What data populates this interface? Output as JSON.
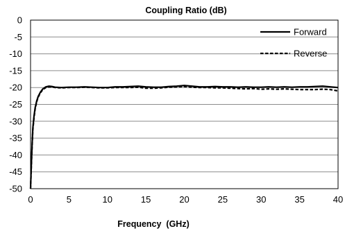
{
  "chart_data": {
    "type": "line",
    "title": "Coupling Ratio (dB)",
    "xlabel": "Frequency  (GHz)",
    "ylabel": "",
    "xlim": [
      0,
      40
    ],
    "ylim": [
      -50,
      0
    ],
    "xticks": [
      0,
      5,
      10,
      15,
      20,
      25,
      30,
      35,
      40
    ],
    "yticks": [
      0,
      -5,
      -10,
      -15,
      -20,
      -25,
      -30,
      -35,
      -40,
      -45,
      -50
    ],
    "grid": true,
    "legend_position": "top-right",
    "series": [
      {
        "name": "Forward",
        "style": "solid",
        "color": "#000000",
        "x": [
          0,
          0.1,
          0.2,
          0.3,
          0.45,
          0.6,
          0.8,
          1.0,
          1.3,
          1.6,
          2.0,
          2.4,
          2.8,
          3.2,
          4,
          5,
          6,
          7,
          8,
          9,
          10,
          11,
          12,
          13,
          14,
          15,
          16,
          17,
          18,
          19,
          20,
          21,
          22,
          23,
          24,
          25,
          26,
          27,
          28,
          29,
          30,
          31,
          32,
          33,
          34,
          35,
          36,
          37,
          38,
          39,
          40
        ],
        "y": [
          -50,
          -43,
          -37,
          -32,
          -28.5,
          -26,
          -24,
          -22.6,
          -21.3,
          -20.4,
          -19.8,
          -19.6,
          -19.7,
          -19.9,
          -20.0,
          -19.9,
          -19.9,
          -19.8,
          -19.9,
          -20.0,
          -20.0,
          -19.8,
          -19.8,
          -19.7,
          -19.6,
          -19.8,
          -19.9,
          -19.9,
          -19.7,
          -19.6,
          -19.4,
          -19.6,
          -19.8,
          -19.8,
          -19.7,
          -19.8,
          -19.8,
          -19.9,
          -19.8,
          -19.9,
          -19.9,
          -19.8,
          -19.9,
          -19.8,
          -19.9,
          -19.8,
          -19.8,
          -19.7,
          -19.6,
          -19.8,
          -20.0
        ]
      },
      {
        "name": "Reverse",
        "style": "dashed",
        "color": "#000000",
        "x": [
          0,
          0.1,
          0.2,
          0.3,
          0.45,
          0.6,
          0.8,
          1.0,
          1.3,
          1.6,
          2.0,
          2.4,
          2.8,
          3.2,
          4,
          5,
          6,
          7,
          8,
          9,
          10,
          11,
          12,
          13,
          14,
          15,
          16,
          17,
          18,
          19,
          20,
          21,
          22,
          23,
          24,
          25,
          26,
          27,
          28,
          29,
          30,
          31,
          32,
          33,
          34,
          35,
          36,
          37,
          38,
          39,
          40
        ],
        "y": [
          -50,
          -43.5,
          -37.5,
          -32.5,
          -29,
          -26.3,
          -24.2,
          -22.8,
          -21.5,
          -20.6,
          -20.0,
          -19.8,
          -19.8,
          -20.0,
          -20.1,
          -20.0,
          -20.0,
          -19.9,
          -20.0,
          -20.1,
          -20.1,
          -20.0,
          -20.0,
          -20.0,
          -19.9,
          -20.2,
          -20.2,
          -20.1,
          -19.9,
          -19.8,
          -19.7,
          -19.9,
          -20.0,
          -20.0,
          -20.1,
          -20.1,
          -20.2,
          -20.3,
          -20.4,
          -20.3,
          -20.5,
          -20.4,
          -20.5,
          -20.4,
          -20.5,
          -20.6,
          -20.6,
          -20.6,
          -20.5,
          -20.6,
          -21.0
        ]
      }
    ]
  }
}
